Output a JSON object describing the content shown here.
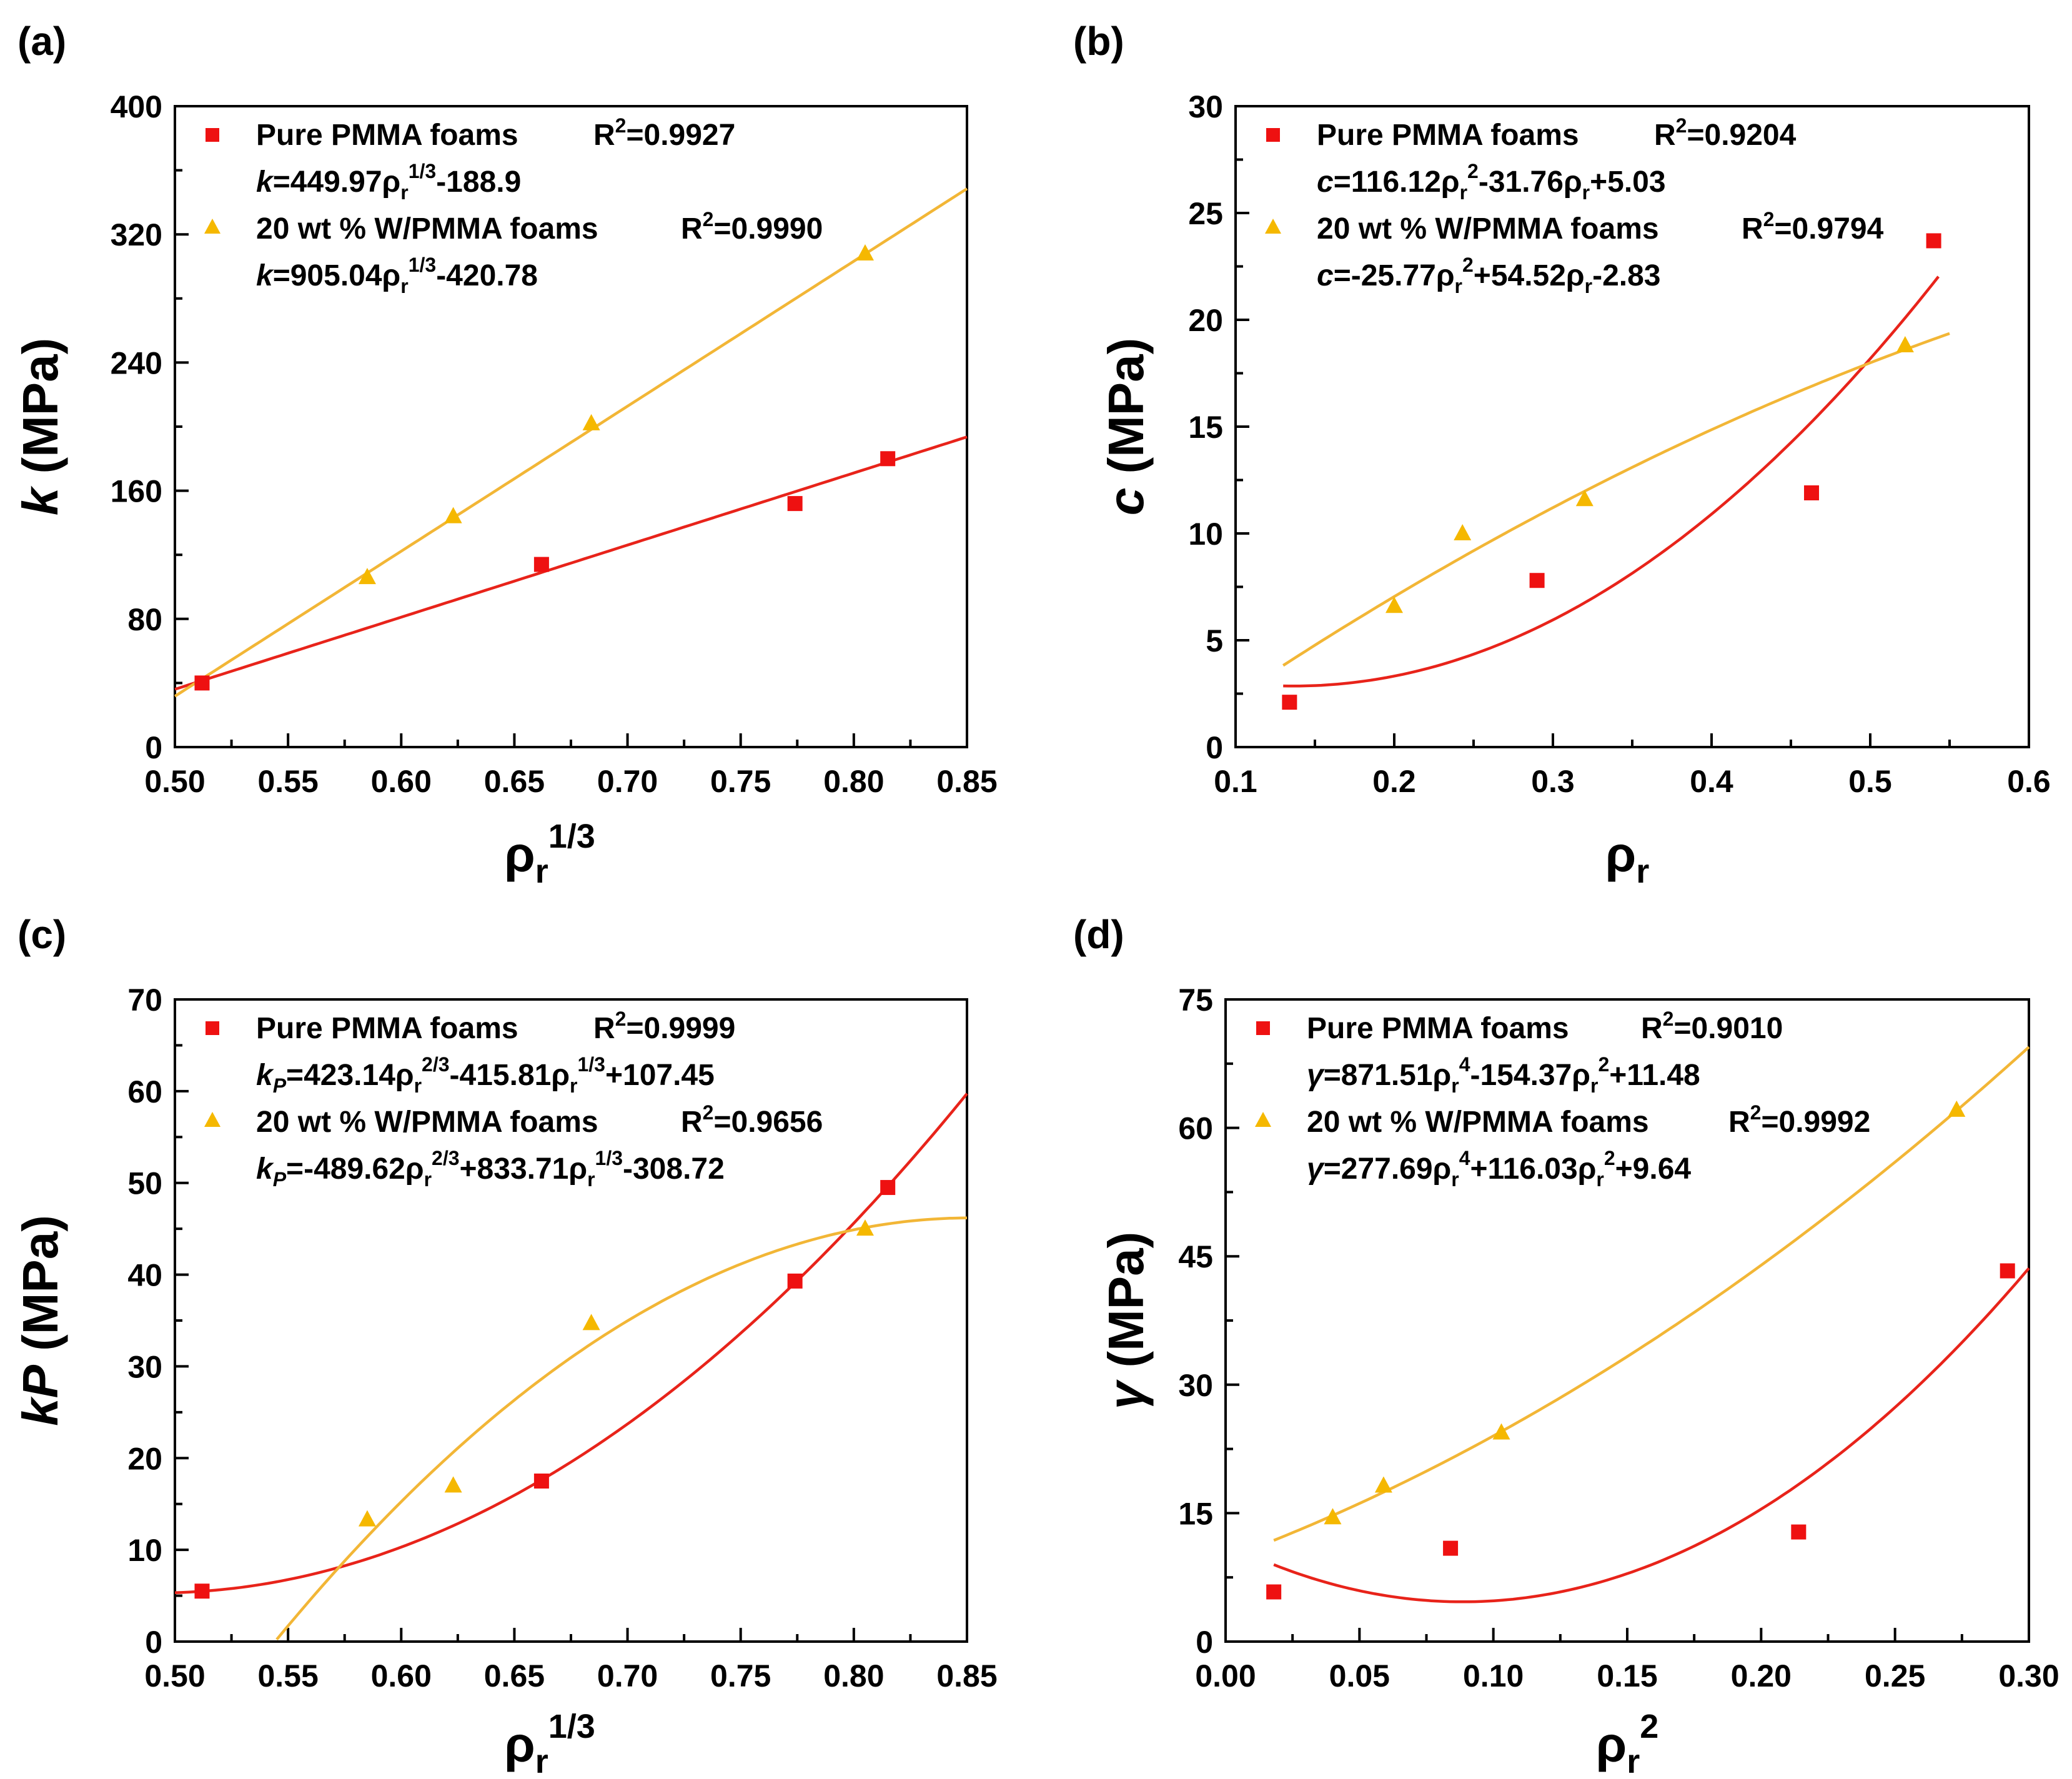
{
  "figure": {
    "colors": {
      "pure": "#ee1111",
      "w": "#f5b800",
      "pure_fit": "#e8231a",
      "w_fit": "#f2b636"
    }
  },
  "chart_data": [
    {
      "panel": "(a)",
      "type": "scatter",
      "xlim": [
        0.5,
        0.85
      ],
      "ylim": [
        0,
        400
      ],
      "xticks": [
        "0.50",
        "0.55",
        "0.60",
        "0.65",
        "0.70",
        "0.75",
        "0.80",
        "0.85"
      ],
      "yticks": [
        "0",
        "80",
        "160",
        "240",
        "320",
        "400"
      ],
      "xlabel": {
        "base": "ρ",
        "sub": "r",
        "sup": "1/3"
      },
      "ylabel": {
        "main": "k",
        "rest": " (MPa)"
      },
      "series": [
        {
          "name": "Pure PMMA foams",
          "r2": "R²=0.9927",
          "formula": [
            {
              "t": "k",
              "i": true
            },
            {
              "t": "=449.97ρ"
            },
            {
              "t": "r",
              "sub": true
            },
            {
              "t": "1/3",
              "sup": true
            },
            {
              "t": "-188.9"
            }
          ],
          "marker": "square",
          "color": "#ee1111",
          "x": [
            0.512,
            0.662,
            0.774,
            0.815
          ],
          "y": [
            40,
            114,
            152,
            180
          ],
          "fit": {
            "model": "poly",
            "var": "x",
            "coef": [
              -188.9,
              449.97
            ],
            "range": [
              0.5,
              0.85
            ]
          }
        },
        {
          "name": "20 wt % W/PMMA foams",
          "r2": "R²=0.9990",
          "formula": [
            {
              "t": "k",
              "i": true
            },
            {
              "t": "=905.04ρ"
            },
            {
              "t": "r",
              "sub": true
            },
            {
              "t": "1/3",
              "sup": true
            },
            {
              "t": "-420.78"
            }
          ],
          "marker": "triangle",
          "color": "#f5b800",
          "x": [
            0.585,
            0.623,
            0.684,
            0.805
          ],
          "y": [
            106,
            144,
            202,
            308
          ],
          "fit": {
            "model": "poly",
            "var": "x",
            "coef": [
              -420.78,
              905.04
            ],
            "range": [
              0.5,
              0.85
            ]
          }
        }
      ]
    },
    {
      "panel": "(b)",
      "type": "scatter",
      "xlim": [
        0.1,
        0.6
      ],
      "ylim": [
        0,
        30
      ],
      "xticks": [
        "0.1",
        "0.2",
        "0.3",
        "0.4",
        "0.5",
        "0.6"
      ],
      "yticks": [
        "0",
        "5",
        "10",
        "15",
        "20",
        "25",
        "30"
      ],
      "xlabel": {
        "base": "ρ",
        "sub": "r"
      },
      "ylabel": {
        "main": "c",
        "rest": " (MPa)"
      },
      "series": [
        {
          "name": "Pure PMMA foams",
          "r2": "R²=0.9204",
          "formula": [
            {
              "t": "c",
              "i": true
            },
            {
              "t": "=116.12ρ"
            },
            {
              "t": "r",
              "sub": true
            },
            {
              "t": "2",
              "sup": true
            },
            {
              "t": "-31.76ρ"
            },
            {
              "t": "r",
              "sub": true
            },
            {
              "t": "+5.03"
            }
          ],
          "marker": "square",
          "color": "#ee1111",
          "x": [
            0.134,
            0.29,
            0.463,
            0.54
          ],
          "y": [
            2.1,
            7.8,
            11.9,
            23.7
          ],
          "fit": {
            "model": "poly",
            "var": "x",
            "coef": [
              5.03,
              -31.76,
              116.12
            ],
            "range": [
              0.13,
              0.543
            ]
          }
        },
        {
          "name": "20 wt % W/PMMA foams",
          "r2": "R²=0.9794",
          "formula": [
            {
              "t": "c",
              "i": true
            },
            {
              "t": "=-25.77ρ"
            },
            {
              "t": "r",
              "sub": true
            },
            {
              "t": "2",
              "sup": true
            },
            {
              "t": "+54.52ρ"
            },
            {
              "t": "r",
              "sub": true
            },
            {
              "t": "-2.83"
            }
          ],
          "marker": "triangle",
          "color": "#f5b800",
          "x": [
            0.2,
            0.243,
            0.32,
            0.522
          ],
          "y": [
            6.6,
            10.0,
            11.6,
            18.8
          ],
          "fit": {
            "model": "poly",
            "var": "x",
            "coef": [
              -2.83,
              54.52,
              -25.77
            ],
            "range": [
              0.13,
              0.55
            ]
          }
        }
      ]
    },
    {
      "panel": "(c)",
      "type": "scatter",
      "xlim": [
        0.5,
        0.85
      ],
      "ylim": [
        0,
        70
      ],
      "xticks": [
        "0.50",
        "0.55",
        "0.60",
        "0.65",
        "0.70",
        "0.75",
        "0.80",
        "0.85"
      ],
      "yticks": [
        "0",
        "10",
        "20",
        "30",
        "40",
        "50",
        "60",
        "70"
      ],
      "xlabel": {
        "base": "ρ",
        "sub": "r",
        "sup": "1/3"
      },
      "ylabel": {
        "main": "kP",
        "rest": " (MPa)"
      },
      "series": [
        {
          "name": "Pure PMMA foams",
          "r2": "R²=0.9999",
          "formula": [
            {
              "t": "k",
              "i": true
            },
            {
              "t": "P",
              "i": true,
              "sub": true
            },
            {
              "t": "=423.14ρ"
            },
            {
              "t": "r",
              "sub": true
            },
            {
              "t": "2/3",
              "sup": true
            },
            {
              "t": "-415.81ρ"
            },
            {
              "t": "r",
              "sub": true
            },
            {
              "t": "1/3",
              "sup": true
            },
            {
              "t": "+107.45"
            }
          ],
          "marker": "square",
          "color": "#ee1111",
          "x": [
            0.512,
            0.662,
            0.774,
            0.815
          ],
          "y": [
            5.5,
            17.5,
            39.3,
            49.5
          ],
          "fit": {
            "model": "poly",
            "var": "x",
            "coef": [
              107.45,
              -415.81,
              423.14
            ],
            "range": [
              0.5,
              0.85
            ]
          }
        },
        {
          "name": "20 wt % W/PMMA foams",
          "r2": "R²=0.9656",
          "formula": [
            {
              "t": "k",
              "i": true
            },
            {
              "t": "P",
              "i": true,
              "sub": true
            },
            {
              "t": "=-489.62ρ"
            },
            {
              "t": "r",
              "sub": true
            },
            {
              "t": "2/3",
              "sup": true
            },
            {
              "t": "+833.71ρ"
            },
            {
              "t": "r",
              "sub": true
            },
            {
              "t": "1/3",
              "sup": true
            },
            {
              "t": "-308.72"
            }
          ],
          "marker": "triangle",
          "color": "#f5b800",
          "x": [
            0.585,
            0.623,
            0.684,
            0.805
          ],
          "y": [
            13.3,
            17.0,
            34.7,
            45.0
          ],
          "fit": {
            "model": "poly",
            "var": "x",
            "coef": [
              -308.72,
              833.71,
              -489.62
            ],
            "range": [
              0.545,
              0.85
            ]
          }
        }
      ]
    },
    {
      "panel": "(d)",
      "type": "scatter",
      "xlim": [
        0,
        0.3
      ],
      "ylim": [
        0,
        75
      ],
      "xticks": [
        "0.00",
        "0.05",
        "0.10",
        "0.15",
        "0.20",
        "0.25",
        "0.30"
      ],
      "yticks": [
        "0",
        "15",
        "30",
        "45",
        "60",
        "75"
      ],
      "xlabel": {
        "base": "ρ",
        "sub": "r",
        "sup": "2"
      },
      "ylabel": {
        "main": "γ",
        "rest": " (MPa)"
      },
      "series": [
        {
          "name": "Pure PMMA foams",
          "r2": "R²=0.9010",
          "formula": [
            {
              "t": "γ",
              "i": true
            },
            {
              "t": "=871.51ρ"
            },
            {
              "t": "r",
              "sub": true
            },
            {
              "t": "4",
              "sup": true
            },
            {
              "t": "-154.37ρ"
            },
            {
              "t": "r",
              "sub": true
            },
            {
              "t": "2",
              "sup": true
            },
            {
              "t": "+11.48"
            }
          ],
          "marker": "square",
          "color": "#ee1111",
          "x": [
            0.018,
            0.084,
            0.214,
            0.292
          ],
          "y": [
            5.8,
            10.9,
            12.8,
            43.3
          ],
          "fit": {
            "model": "poly",
            "var": "x",
            "coef": [
              11.48,
              -154.37,
              871.51
            ],
            "range": [
              0.018,
              0.3
            ]
          }
        },
        {
          "name": "20 wt % W/PMMA foams",
          "r2": "R²=0.9992",
          "formula": [
            {
              "t": "γ",
              "i": true
            },
            {
              "t": "=277.69ρ"
            },
            {
              "t": "r",
              "sub": true
            },
            {
              "t": "4",
              "sup": true
            },
            {
              "t": "+116.03ρ"
            },
            {
              "t": "r",
              "sub": true
            },
            {
              "t": "2",
              "sup": true
            },
            {
              "t": "+9.64"
            }
          ],
          "marker": "triangle",
          "color": "#f5b800",
          "x": [
            0.04,
            0.059,
            0.103,
            0.273
          ],
          "y": [
            14.5,
            18.2,
            24.4,
            62.1
          ],
          "fit": {
            "model": "poly",
            "var": "x",
            "coef": [
              9.64,
              116.03,
              277.69
            ],
            "range": [
              0.018,
              0.3
            ]
          }
        }
      ]
    }
  ]
}
